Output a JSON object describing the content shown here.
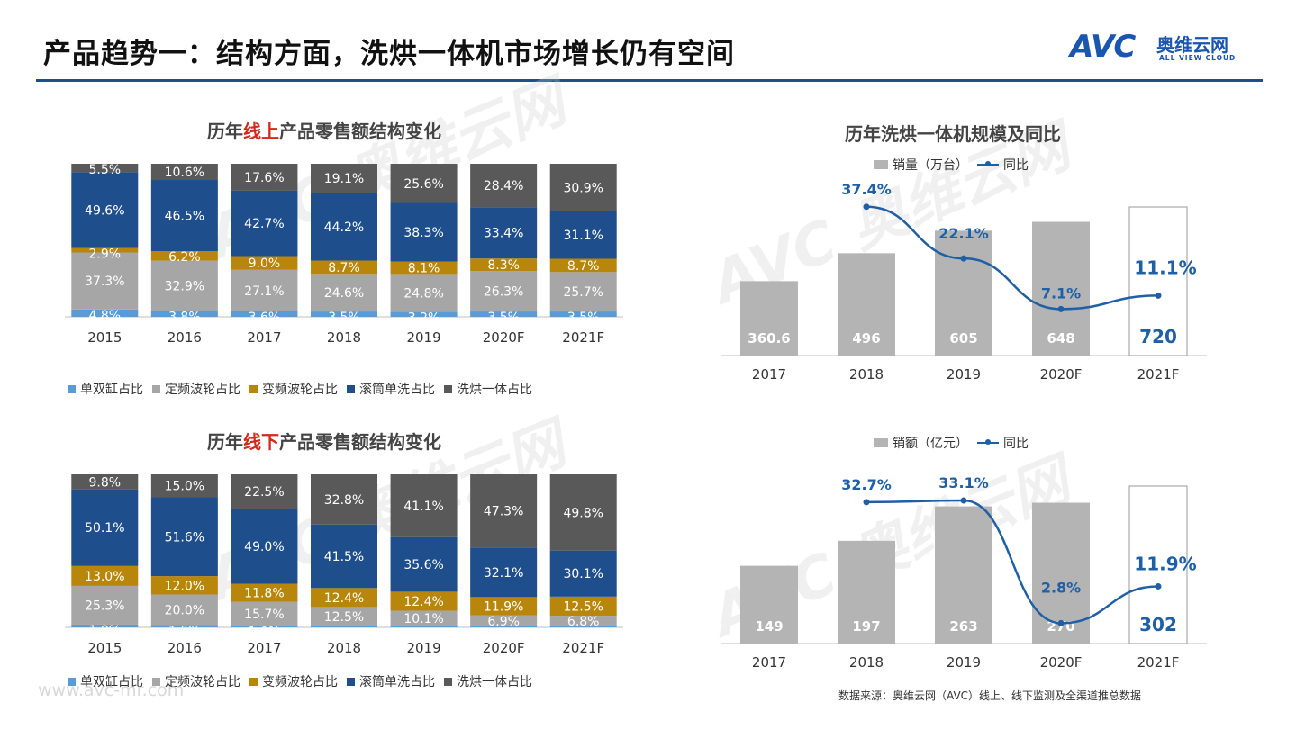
{
  "header": {
    "title": "产品趋势一：结构方面，洗烘一体机市场增长仍有空间",
    "logo_mark": "AVC",
    "logo_cn": "奥维云网",
    "logo_en": "ALL VIEW CLOUD"
  },
  "watermark": {
    "text": "AVC 奥维云网"
  },
  "website": "www.avc-mr.com",
  "source_note": "数据来源：奥维云网（AVC）线上、线下监测及全渠道推总数据",
  "colors": {
    "single_double_tub": "#5b9bd5",
    "fixed_pulsator": "#a6a6a6",
    "inverter_pulsator": "#b8860b",
    "drum_wash_only": "#1f4e8c",
    "washer_dryer": "#595959",
    "volume_bar": "#b4b4b4",
    "yoy_line": "#1f5fa6"
  },
  "online_chart": {
    "title_prefix": "历年",
    "title_highlight": "线上",
    "title_suffix": "产品零售额结构变化",
    "legend": [
      "单双缸占比",
      "定频波轮占比",
      "变频波轮占比",
      "滚筒单洗占比",
      "洗烘一体占比"
    ],
    "chart_data": {
      "type": "bar",
      "stacked": true,
      "categories": [
        "2015",
        "2016",
        "2017",
        "2018",
        "2019",
        "2020F",
        "2021F"
      ],
      "series": [
        {
          "name": "单双缸占比",
          "values": [
            4.8,
            3.8,
            3.6,
            3.5,
            3.2,
            3.5,
            3.5
          ],
          "labels": [
            "4.8%",
            "3.8%",
            "3.6%",
            "3.5%",
            "3.2%",
            "3.5%",
            "3.5%"
          ]
        },
        {
          "name": "定频波轮占比",
          "values": [
            37.3,
            32.9,
            27.1,
            24.6,
            24.8,
            26.3,
            25.7
          ],
          "labels": [
            "37.3%",
            "32.9%",
            "27.1%",
            "24.6%",
            "24.8%",
            "26.3%",
            "25.7%"
          ]
        },
        {
          "name": "变频波轮占比",
          "values": [
            2.9,
            6.2,
            9.0,
            8.7,
            8.1,
            8.3,
            8.7
          ],
          "labels": [
            "2.9%",
            "6.2%",
            "9.0%",
            "8.7%",
            "8.1%",
            "8.3%",
            "8.7%"
          ]
        },
        {
          "name": "滚筒单洗占比",
          "values": [
            49.6,
            46.5,
            42.7,
            44.2,
            38.3,
            33.4,
            31.1
          ],
          "labels": [
            "49.6%",
            "46.5%",
            "42.7%",
            "44.2%",
            "38.3%",
            "33.4%",
            "31.1%"
          ]
        },
        {
          "name": "洗烘一体占比",
          "values": [
            5.5,
            10.6,
            17.6,
            19.1,
            25.6,
            28.4,
            30.9
          ],
          "labels": [
            "5.5%",
            "10.6%",
            "17.6%",
            "19.1%",
            "25.6%",
            "28.4%",
            "30.9%"
          ]
        }
      ],
      "ylim": [
        0,
        100
      ]
    }
  },
  "offline_chart": {
    "title_prefix": "历年",
    "title_highlight": "线下",
    "title_suffix": "产品零售额结构变化",
    "legend": [
      "单双缸占比",
      "定频波轮占比",
      "变频波轮占比",
      "滚筒单洗占比",
      "洗烘一体占比"
    ],
    "chart_data": {
      "type": "bar",
      "stacked": true,
      "categories": [
        "2015",
        "2016",
        "2017",
        "2018",
        "2019",
        "2020F",
        "2021F"
      ],
      "series": [
        {
          "name": "单双缸占比",
          "values": [
            1.8,
            1.5,
            1.0,
            0.8,
            0.8,
            0.8,
            0.8
          ],
          "labels": [
            "1.8%",
            "1.5%",
            "1.0%",
            "",
            "",
            "",
            ""
          ]
        },
        {
          "name": "定频波轮占比",
          "values": [
            25.3,
            20.0,
            15.7,
            12.5,
            10.1,
            6.9,
            6.8
          ],
          "labels": [
            "25.3%",
            "20.0%",
            "15.7%",
            "12.5%",
            "10.1%",
            "6.9%",
            "6.8%"
          ]
        },
        {
          "name": "变频波轮占比",
          "values": [
            13.0,
            12.0,
            11.8,
            12.4,
            12.4,
            11.9,
            12.5
          ],
          "labels": [
            "13.0%",
            "12.0%",
            "11.8%",
            "12.4%",
            "12.4%",
            "11.9%",
            "12.5%"
          ]
        },
        {
          "name": "滚筒单洗占比",
          "values": [
            50.1,
            51.6,
            49.0,
            41.5,
            35.6,
            32.1,
            30.1
          ],
          "labels": [
            "50.1%",
            "51.6%",
            "49.0%",
            "41.5%",
            "35.6%",
            "32.1%",
            "30.1%"
          ]
        },
        {
          "name": "洗烘一体占比",
          "values": [
            9.8,
            15.0,
            22.5,
            32.8,
            41.1,
            47.3,
            49.8
          ],
          "labels": [
            "9.8%",
            "15.0%",
            "22.5%",
            "32.8%",
            "41.1%",
            "47.3%",
            "49.8%"
          ]
        }
      ],
      "ylim": [
        0,
        100
      ]
    }
  },
  "volume_chart": {
    "title": "历年洗烘一体机规模及同比",
    "legend_bar": "销量（万台）",
    "legend_line": "同比",
    "chart_data": {
      "type": "bar",
      "categories": [
        "2017",
        "2018",
        "2019",
        "2020F",
        "2021F"
      ],
      "series": [
        {
          "name": "销量（万台）",
          "values": [
            360.6,
            496,
            605,
            648,
            720
          ],
          "labels": [
            "360.6",
            "496",
            "605",
            "648",
            "720"
          ]
        },
        {
          "name": "同比",
          "type": "line",
          "values": [
            null,
            37.4,
            22.1,
            7.1,
            11.1
          ],
          "labels": [
            "",
            "37.4%",
            "22.1%",
            "7.1%",
            "11.1%"
          ]
        }
      ],
      "forecast_outline_last": true
    }
  },
  "sales_chart": {
    "legend_bar": "销额（亿元）",
    "legend_line": "同比",
    "chart_data": {
      "type": "bar",
      "categories": [
        "2017",
        "2018",
        "2019",
        "2020F",
        "2021F"
      ],
      "series": [
        {
          "name": "销额（亿元）",
          "values": [
            149,
            197,
            263,
            270,
            302
          ],
          "labels": [
            "149",
            "197",
            "263",
            "270",
            "302"
          ]
        },
        {
          "name": "同比",
          "type": "line",
          "values": [
            null,
            32.7,
            33.1,
            2.8,
            11.9
          ],
          "labels": [
            "",
            "32.7%",
            "33.1%",
            "2.8%",
            "11.9%"
          ]
        }
      ],
      "forecast_outline_last": true
    }
  }
}
